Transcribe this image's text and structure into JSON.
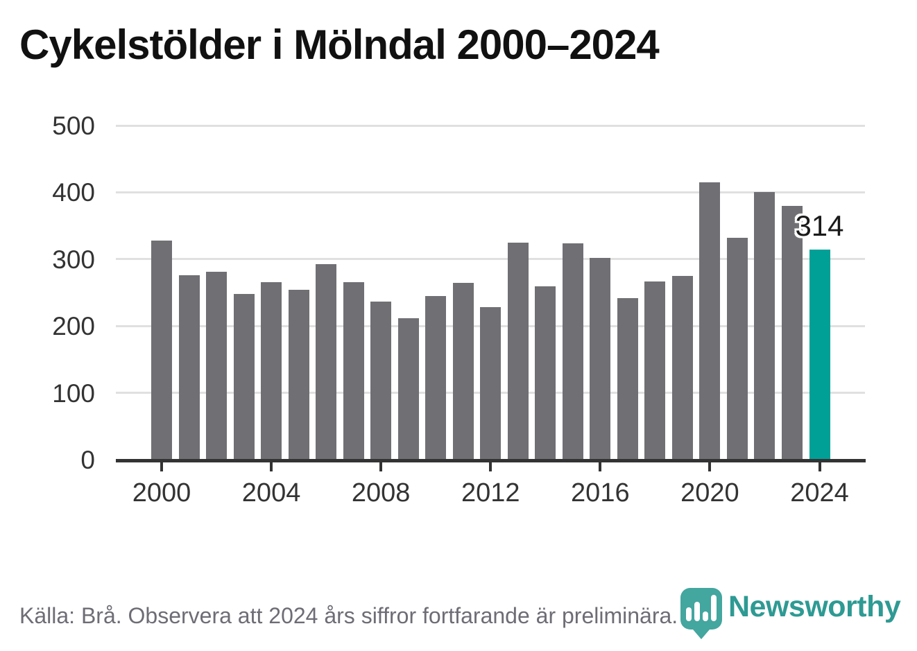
{
  "title": "Cykelstölder i Mölndal 2000–2024",
  "source_note": "Källa: Brå. Observera att 2024 års siffror fortfarande är preliminära.",
  "brand": {
    "name": "Newsworthy",
    "icon": "newsworthy-speech-bubble-bar-chart-icon",
    "icon_color": "#43a69f",
    "wordmark_color": "#2e9a93"
  },
  "colors": {
    "bar_default": "#706f73",
    "bar_highlight": "#00a097",
    "gridline": "#e0e0e0",
    "axis": "#333333",
    "tick_text": "#333333",
    "title_text": "#111111",
    "source_text": "#6e6d75",
    "annotation_text": "#1a1a1a",
    "background": "#ffffff"
  },
  "chart_data": {
    "type": "bar",
    "title": "Cykelstölder i Mölndal 2000–2024",
    "xlabel": "",
    "ylabel": "",
    "x": [
      2000,
      2001,
      2002,
      2003,
      2004,
      2005,
      2006,
      2007,
      2008,
      2009,
      2010,
      2011,
      2012,
      2013,
      2014,
      2015,
      2016,
      2017,
      2018,
      2019,
      2020,
      2021,
      2022,
      2023,
      2024
    ],
    "values": [
      328,
      276,
      281,
      248,
      266,
      254,
      293,
      266,
      236,
      212,
      245,
      265,
      228,
      325,
      259,
      324,
      302,
      242,
      267,
      275,
      415,
      332,
      400,
      380,
      314
    ],
    "highlight_index": 24,
    "highlight_label": "314",
    "ylim": [
      0,
      500
    ],
    "yticks": [
      0,
      100,
      200,
      300,
      400,
      500
    ],
    "xticks": [
      2000,
      2004,
      2008,
      2012,
      2016,
      2020,
      2024
    ],
    "grid": "horizontal",
    "legend": "none"
  }
}
